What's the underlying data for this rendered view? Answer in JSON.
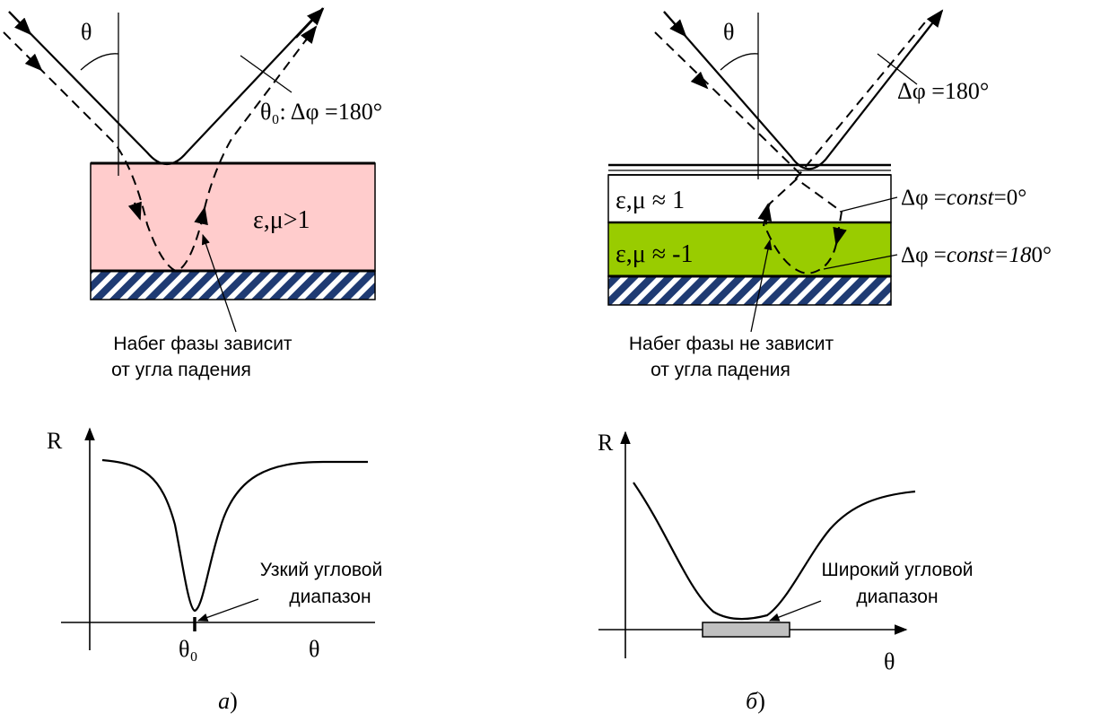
{
  "colors": {
    "medium_pink": "#ffcccc",
    "layer_green": "#99cc00",
    "substrate_hatch": "#1f3b73",
    "range_box": "#c0c0c0"
  },
  "panel_a": {
    "angle": "θ",
    "phase_annotation": "θ₀: Δφ =180°",
    "medium_label": "ε,μ>1",
    "note_line1": "Набег фазы зависит",
    "note_line2": "от угла падения",
    "plot_y_label": "R",
    "plot_x_label": "θ",
    "plot_tick": "θ₀",
    "range_line1": "Узкий угловой",
    "range_line2": "диапазон",
    "caption_letter": "а",
    "caption_paren": ")"
  },
  "panel_b": {
    "angle": "θ",
    "phase_annotation": "Δφ =180°",
    "layer1_label": "ε,μ ≈ 1",
    "layer2_label": "ε,μ ≈ -1",
    "phase1_prefix": "Δφ =",
    "phase1_italic": "const",
    "phase1_suffix": "=0°",
    "phase2_prefix": "Δφ =",
    "phase2_italic": "const=18",
    "phase2_suffix": "0°",
    "note_line1": "Набег фазы не зависит",
    "note_line2": "от угла падения",
    "plot_y_label": "R",
    "plot_x_label": "θ",
    "range_line1": "Широкий угловой",
    "range_line2": "диапазон",
    "caption_letter": "б",
    "caption_paren": ")"
  }
}
